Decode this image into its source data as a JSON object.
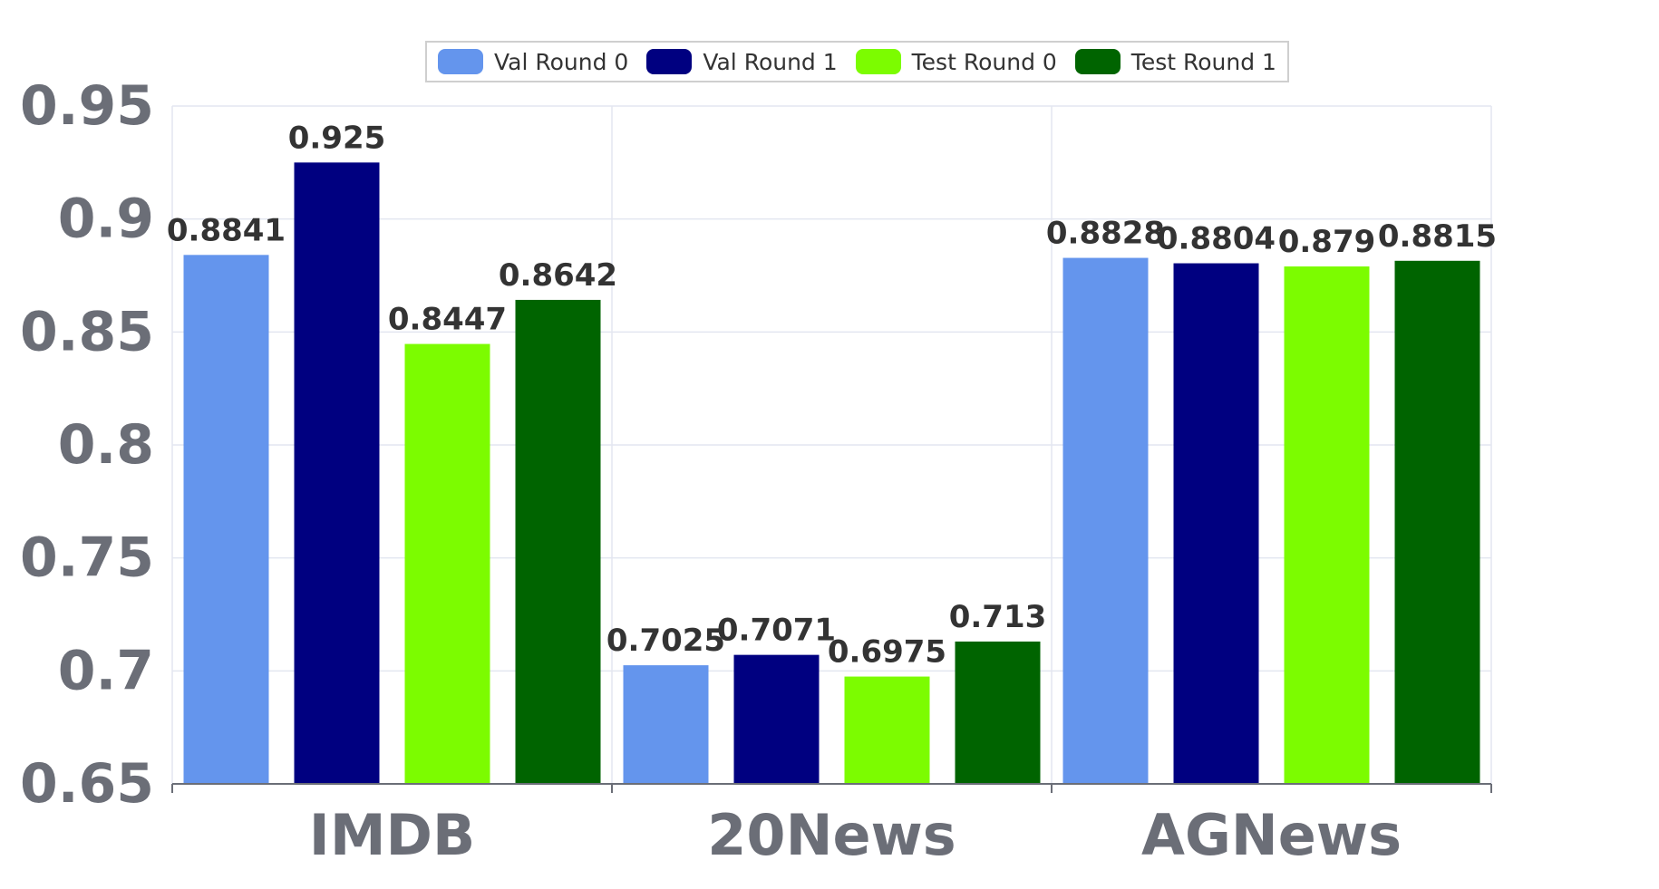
{
  "chart_data": {
    "type": "bar",
    "categories": [
      "IMDB",
      "20News",
      "AGNews"
    ],
    "series": [
      {
        "name": "Val Round 0",
        "color": "#6495ED",
        "values": [
          0.8841,
          0.7025,
          0.8828
        ]
      },
      {
        "name": "Val Round 1",
        "color": "#000080",
        "values": [
          0.925,
          0.7071,
          0.8804
        ]
      },
      {
        "name": "Test Round 0",
        "color": "#7CFC00",
        "values": [
          0.8447,
          0.6975,
          0.879
        ]
      },
      {
        "name": "Test Round 1",
        "color": "#006400",
        "values": [
          0.8642,
          0.713,
          0.8815
        ]
      }
    ],
    "data_labels": [
      [
        "0.8841",
        "0.7025",
        "0.8828"
      ],
      [
        "0.925",
        "0.7071",
        "0.8804"
      ],
      [
        "0.8447",
        "0.6975",
        "0.879"
      ],
      [
        "0.8642",
        "0.713",
        "0.8815"
      ]
    ],
    "ylim": [
      0.65,
      0.95
    ],
    "yticks": [
      0.65,
      0.7,
      0.75,
      0.8,
      0.85,
      0.9,
      0.95
    ],
    "ytick_labels": [
      "0.65",
      "0.7",
      "0.75",
      "0.8",
      "0.85",
      "0.9",
      "0.95"
    ],
    "title": "",
    "xlabel": "",
    "ylabel": "",
    "grid": true,
    "legend_position": "top-center"
  }
}
